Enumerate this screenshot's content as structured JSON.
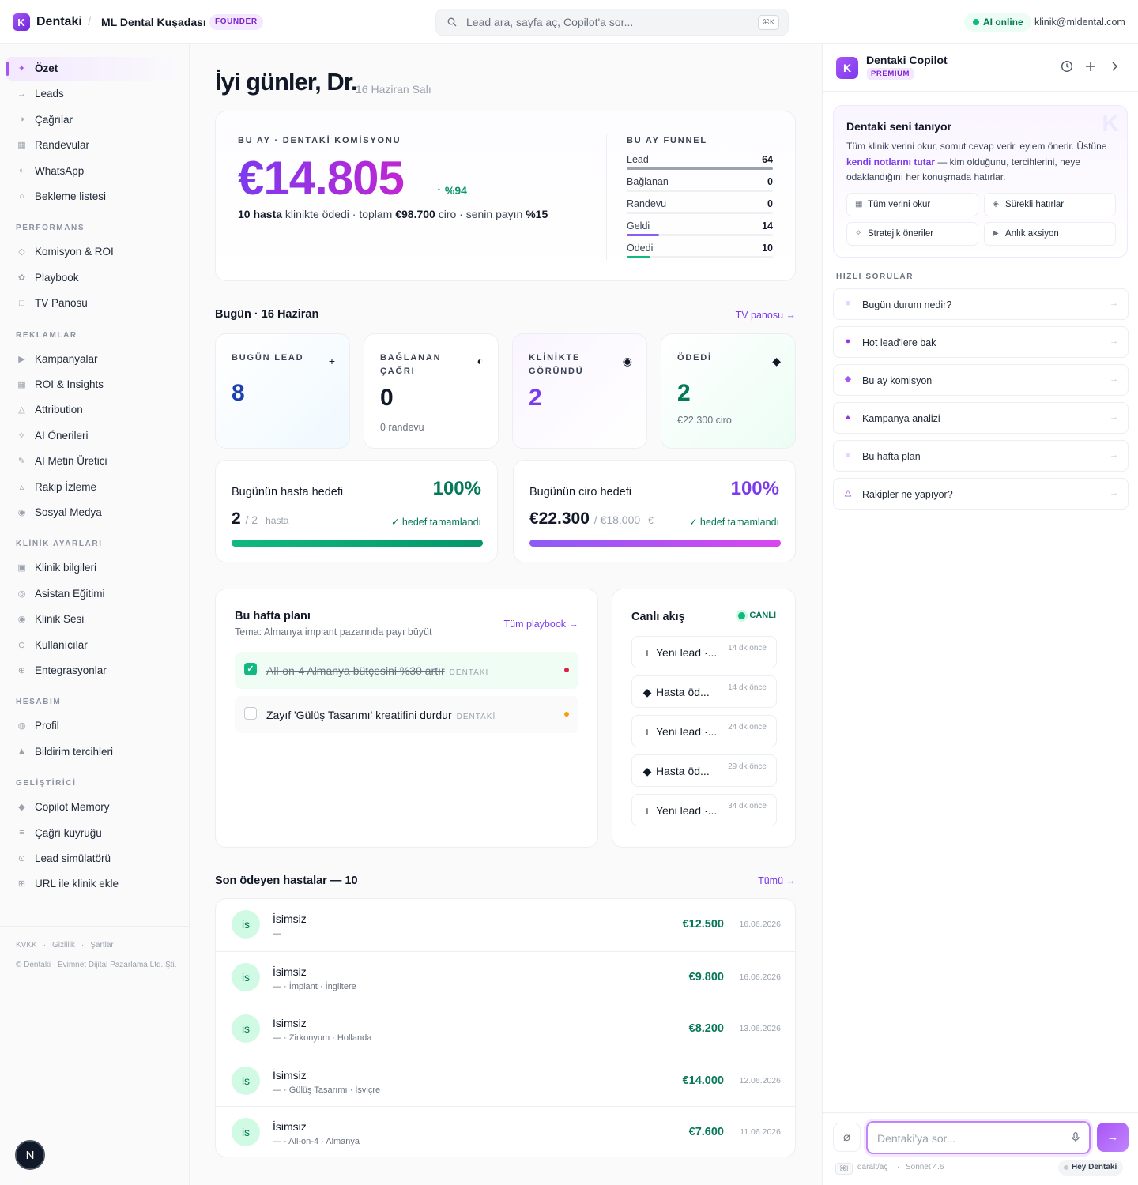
{
  "topbar": {
    "logo_letter": "K",
    "brand": "Dentaki",
    "separator": "/",
    "clinic": "ML Dental Kuşadası",
    "badge": "FOUNDER",
    "search_placeholder": "Lead ara, sayfa aç, Copilot'a sor...",
    "search_kbd": "⌘K",
    "status": "AI online",
    "email": "klinik@mldental.com"
  },
  "sidebar": {
    "main_items": [
      {
        "label": "Özet",
        "icon": "sparkle-icon",
        "glyph": "✦",
        "active": true
      },
      {
        "label": "Leads",
        "icon": "arrow-right-icon",
        "glyph": "→"
      },
      {
        "label": "Çağrılar",
        "icon": "half-circle-icon",
        "glyph": "◑"
      },
      {
        "label": "Randevular",
        "icon": "calendar-icon",
        "glyph": "▦"
      },
      {
        "label": "WhatsApp",
        "icon": "half-moon-icon",
        "glyph": "◐"
      },
      {
        "label": "Bekleme listesi",
        "icon": "circle-icon",
        "glyph": "○"
      }
    ],
    "sections": [
      {
        "title": "PERFORMANS",
        "items": [
          {
            "label": "Komisyon & ROI",
            "icon": "diamond-icon",
            "glyph": "◇"
          },
          {
            "label": "Playbook",
            "icon": "flower-icon",
            "glyph": "✿"
          },
          {
            "label": "TV Panosu",
            "icon": "square-icon",
            "glyph": "□"
          }
        ]
      },
      {
        "title": "REKLAMLAR",
        "items": [
          {
            "label": "Kampanyalar",
            "icon": "play-icon",
            "glyph": "▶"
          },
          {
            "label": "ROI & Insights",
            "icon": "grid-icon",
            "glyph": "▦"
          },
          {
            "label": "Attribution",
            "icon": "triangle-icon",
            "glyph": "△"
          },
          {
            "label": "AI Önerileri",
            "icon": "star-icon",
            "glyph": "✧"
          },
          {
            "label": "AI Metin Üretici",
            "icon": "pen-icon",
            "glyph": "✎"
          },
          {
            "label": "Rakip İzleme",
            "icon": "triangle-small-icon",
            "glyph": "▵"
          },
          {
            "label": "Sosyal Medya",
            "icon": "dot-circle-icon",
            "glyph": "◉"
          }
        ]
      },
      {
        "title": "KLİNİK AYARLARI",
        "items": [
          {
            "label": "Klinik bilgileri",
            "icon": "square-dot-icon",
            "glyph": "▣"
          },
          {
            "label": "Asistan Eğitimi",
            "icon": "target-icon",
            "glyph": "◎"
          },
          {
            "label": "Klinik Sesi",
            "icon": "voice-icon",
            "glyph": "◉"
          },
          {
            "label": "Kullanıcılar",
            "icon": "users-icon",
            "glyph": "⊖"
          },
          {
            "label": "Entegrasyonlar",
            "icon": "plus-circle-icon",
            "glyph": "⊕"
          }
        ]
      },
      {
        "title": "HESABIM",
        "items": [
          {
            "label": "Profil",
            "icon": "profile-icon",
            "glyph": "◍"
          },
          {
            "label": "Bildirim tercihleri",
            "icon": "bell-icon",
            "glyph": "▲"
          }
        ]
      },
      {
        "title": "GELİŞTİRİCİ",
        "items": [
          {
            "label": "Copilot Memory",
            "icon": "memory-icon",
            "glyph": "◆"
          },
          {
            "label": "Çağrı kuyruğu",
            "icon": "queue-icon",
            "glyph": "≡"
          },
          {
            "label": "Lead simülatörü",
            "icon": "simulator-icon",
            "glyph": "⊙"
          },
          {
            "label": "URL ile klinik ekle",
            "icon": "grid-add-icon",
            "glyph": "⊞"
          }
        ]
      }
    ],
    "footer_links": [
      "KVKK",
      "·",
      "Gizlilik",
      "·",
      "Şartlar"
    ],
    "copyright": "© Dentaki · Evimnet Dijital Pazarlama Ltd. Şti.",
    "user_initial": "N"
  },
  "greeting": {
    "title": "İyi günler, Dr.",
    "date": "16 Haziran Salı"
  },
  "commission": {
    "kicker": "BU AY · DENTAKİ KOMİSYONU",
    "amount": "€14.805",
    "growth": "↑ %94",
    "sub_patients": "10 hasta",
    "sub_text1": " klinikte ödedi · toplam ",
    "sub_total": "€98.700",
    "sub_text2": " ciro · senin payın ",
    "sub_share": "%15",
    "funnel_title": "BU AY FUNNEL",
    "funnel": [
      {
        "label": "Lead",
        "value": "64",
        "fraction": 1.0,
        "color": "#9ca3af"
      },
      {
        "label": "Bağlanan",
        "value": "0",
        "fraction": 0,
        "color": "#9ca3af"
      },
      {
        "label": "Randevu",
        "value": "0",
        "fraction": 0,
        "color": "#9ca3af"
      },
      {
        "label": "Geldi",
        "value": "14",
        "fraction": 0.22,
        "color": "#8b5cf6"
      },
      {
        "label": "Ödedi",
        "value": "10",
        "fraction": 0.16,
        "color": "#10b981"
      }
    ]
  },
  "today": {
    "title": "Bugün · 16 Haziran",
    "link": "TV panosu →",
    "stats": [
      {
        "label": "BUGÜN LEAD",
        "icon": "plus-icon",
        "glyph": "+",
        "value": "8",
        "sub": "",
        "value_color": "#1e40af"
      },
      {
        "label": "BAĞLANAN ÇAĞRI",
        "icon": "half-circle-icon",
        "glyph": "◐",
        "value": "0",
        "sub": "0 randevu",
        "value_color": "#111827"
      },
      {
        "label": "KLİNİKTE GÖRÜNDÜ",
        "icon": "target-icon",
        "glyph": "◉",
        "value": "2",
        "sub": "",
        "value_color": "#7c3aed"
      },
      {
        "label": "ÖDEDİ",
        "icon": "diamond-icon",
        "glyph": "◆",
        "value": "2",
        "sub": "€22.300 ciro",
        "value_color": "#047857"
      }
    ],
    "patient_goal": {
      "title": "Bugünün hasta hedefi",
      "percent": "100%",
      "value": "2",
      "of": "/ 2",
      "unit": "hasta",
      "status": "✓ hedef tamamlandı",
      "progress": 1.0
    },
    "revenue_goal": {
      "title": "Bugünün ciro hedefi",
      "percent": "100%",
      "value": "€22.300",
      "of": "/ €18.000",
      "unit": "€",
      "status": "✓ hedef tamamlandı",
      "progress": 1.0
    }
  },
  "plan": {
    "title": "Bu hafta planı",
    "theme": "Tema: Almanya implant pazarında payı büyüt",
    "link": "Tüm playbook →",
    "tasks": [
      {
        "text": "All-on-4 Almanya bütçesini %30 artır",
        "tag": "DENTAKİ",
        "done": true,
        "check": "✓",
        "priority_color": "#e11d48"
      },
      {
        "text": "Zayıf 'Gülüş Tasarımı' kreatifini durdur",
        "tag": "DENTAKİ",
        "done": false,
        "check": "",
        "priority_color": "#f59e0b"
      }
    ]
  },
  "live": {
    "title": "Canlı akış",
    "badge": "CANLI",
    "items": [
      {
        "icon": "plus-icon",
        "glyph": "+",
        "text": "Yeni lead ·...",
        "time": "14 dk önce"
      },
      {
        "icon": "diamond-icon",
        "glyph": "◆",
        "text": "Hasta öd...",
        "time": "14 dk önce"
      },
      {
        "icon": "plus-icon",
        "glyph": "+",
        "text": "Yeni lead ·...",
        "time": "24 dk önce"
      },
      {
        "icon": "diamond-icon",
        "glyph": "◆",
        "text": "Hasta öd...",
        "time": "29 dk önce"
      },
      {
        "icon": "plus-icon",
        "glyph": "+",
        "text": "Yeni lead ·...",
        "time": "34 dk önce"
      }
    ]
  },
  "patients": {
    "title": "Son ödeyen hastalar — 10",
    "link": "Tümü →",
    "rows": [
      {
        "initials": "is",
        "name": "İsimsiz",
        "detail": "—",
        "amount": "€12.500",
        "date": "16.06.2026"
      },
      {
        "initials": "is",
        "name": "İsimsiz",
        "detail": "— · İmplant · İngiltere",
        "amount": "€9.800",
        "date": "16.06.2026"
      },
      {
        "initials": "is",
        "name": "İsimsiz",
        "detail": "— · Zirkonyum · Hollanda",
        "amount": "€8.200",
        "date": "13.06.2026"
      },
      {
        "initials": "is",
        "name": "İsimsiz",
        "detail": "— · Gülüş Tasarımı · İsviçre",
        "amount": "€14.000",
        "date": "12.06.2026"
      },
      {
        "initials": "is",
        "name": "İsimsiz",
        "detail": "— · All-on-4 · Almanya",
        "amount": "€7.600",
        "date": "11.06.2026"
      }
    ]
  },
  "copilot": {
    "logo_letter": "K",
    "title": "Dentaki Copilot",
    "badge": "PREMIUM",
    "intro_title": "Dentaki seni tanıyor",
    "intro_text1": "Tüm klinik verini okur, somut cevap verir, eylem önerir. Üstüne ",
    "intro_bold": "kendi notlarını tutar",
    "intro_text2": " — kim olduğunu, tercihlerini, neye odaklandığını her konuşmada hatırlar.",
    "watermark": "K",
    "chips": [
      {
        "icon": "grid-icon",
        "glyph": "▦",
        "label": "Tüm verini okur"
      },
      {
        "icon": "memory-icon",
        "glyph": "◈",
        "label": "Sürekli hatırlar"
      },
      {
        "icon": "sparkle-icon",
        "glyph": "✧",
        "label": "Stratejik öneriler"
      },
      {
        "icon": "play-icon",
        "glyph": "▶",
        "label": "Anlık aksiyon"
      }
    ],
    "quick_title": "HIZLI SORULAR",
    "quick": [
      {
        "icon": "square-icon",
        "glyph": "■",
        "color": "#e9d5ff",
        "label": "Bugün durum nedir?"
      },
      {
        "icon": "circle-icon",
        "glyph": "●",
        "color": "#9333ea",
        "label": "Hot lead'lere bak"
      },
      {
        "icon": "diamond-icon",
        "glyph": "◆",
        "color": "#a855f7",
        "label": "Bu ay komisyon"
      },
      {
        "icon": "triangle-icon",
        "glyph": "▲",
        "color": "#9333ea",
        "label": "Kampanya analizi"
      },
      {
        "icon": "square-icon",
        "glyph": "■",
        "color": "#e9d5ff",
        "label": "Bu hafta plan"
      },
      {
        "icon": "triangle-outline-icon",
        "glyph": "△",
        "color": "#9333ea",
        "label": "Rakipler ne yapıyor?"
      }
    ],
    "input_placeholder": "Dentaki'ya sor...",
    "kbd": "⌘I",
    "hint_toggle": "daralt/aç",
    "hint_dot": "·",
    "model": "Sonnet 4.6",
    "wake": "Hey Dentaki"
  }
}
